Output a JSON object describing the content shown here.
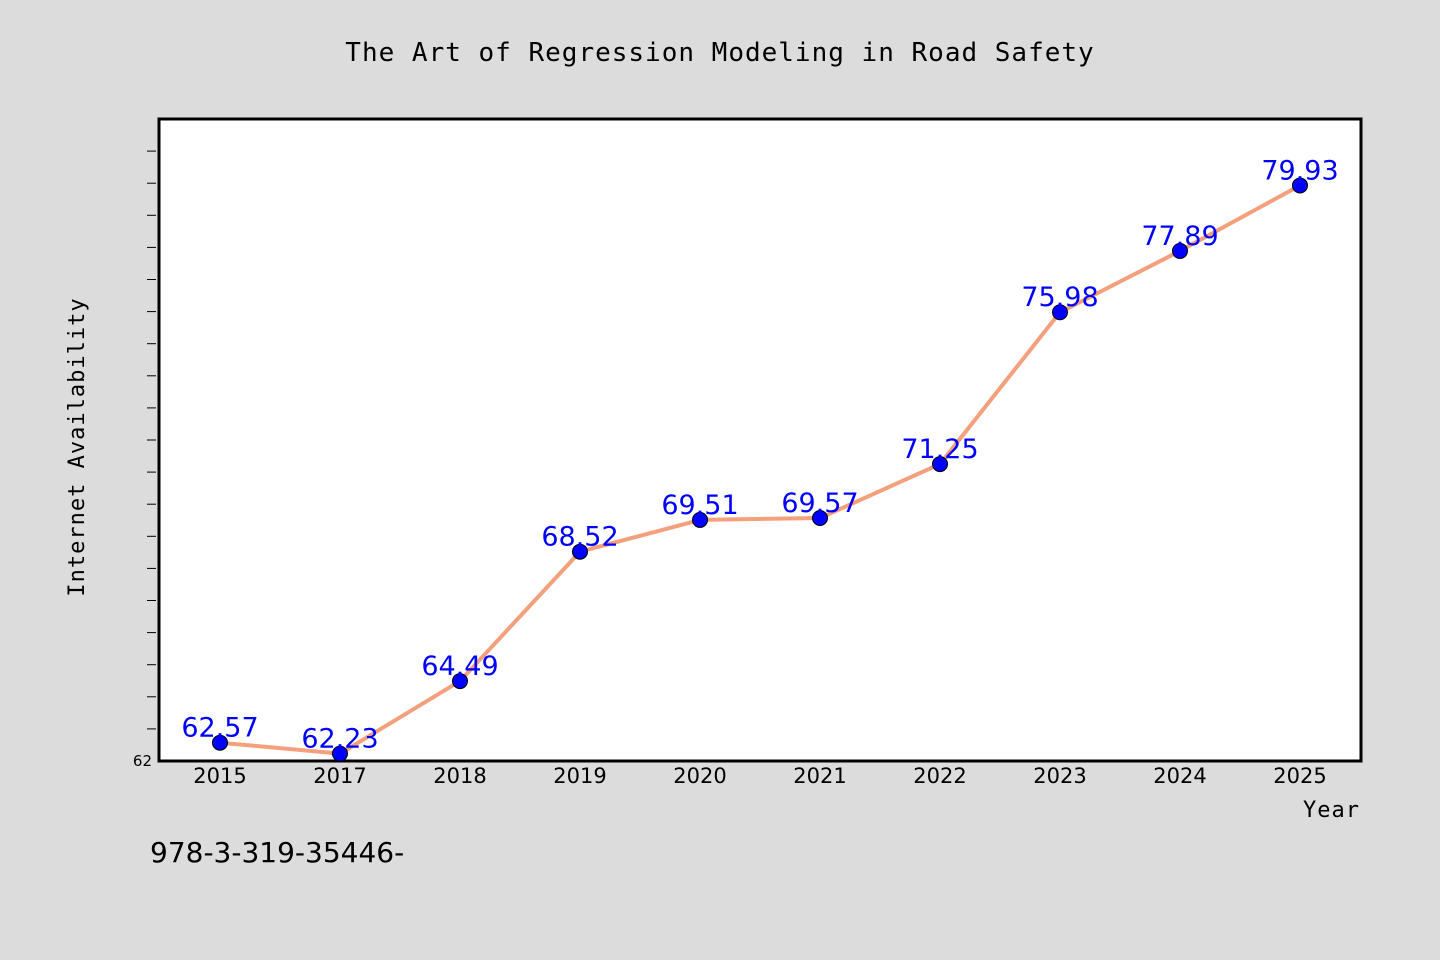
{
  "chart_data": {
    "type": "line",
    "title": "The Art of Regression Modeling in Road Safety",
    "xlabel": "Year",
    "ylabel": "Internet Availability",
    "categories": [
      "2015",
      "2017",
      "2018",
      "2019",
      "2020",
      "2021",
      "2022",
      "2023",
      "2024",
      "2025"
    ],
    "series": [
      {
        "values": [
          62.57,
          62.23,
          64.49,
          68.52,
          69.51,
          69.57,
          71.25,
          75.98,
          77.89,
          79.93
        ]
      }
    ],
    "data_labels": [
      "62.57",
      "62.23",
      "64.49",
      "68.52",
      "69.51",
      "69.57",
      "71.25",
      "75.98",
      "77.89",
      "79.93"
    ],
    "ylim": [
      62,
      82
    ],
    "y_tick_labels": [
      "62"
    ],
    "grid": false,
    "colors": {
      "line": "#f4a07c",
      "marker": "#0000ff",
      "label": "#0000ff",
      "plot_bg": "#ffffff",
      "page_bg": "#dcdcdc"
    }
  },
  "footer_text": "978-3-319-35446-"
}
